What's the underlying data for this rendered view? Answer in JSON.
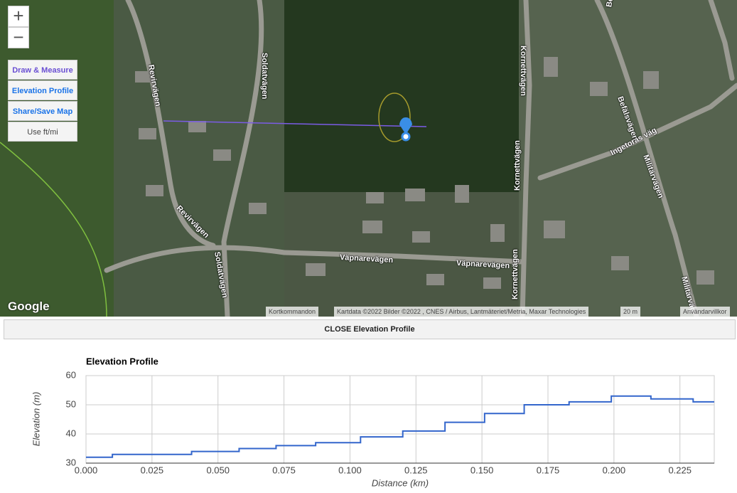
{
  "map": {
    "zoom_in": "+",
    "zoom_out": "−",
    "buttons": [
      "Draw & Measure",
      "Elevation Profile",
      "Share/Save Map",
      "Use ft/mi"
    ],
    "streets": [
      "Revirvägen",
      "Revirvägen",
      "Soldatvägen",
      "Soldatvägen",
      "Kornettvägen",
      "Kornettvägen",
      "Kornettvägen",
      "Befälsvägen",
      "Befälsvägen",
      "Ingetoras väg",
      "Militärvägen",
      "Militärväg",
      "Väpnarevägen",
      "Väpnarevägen"
    ],
    "logo": "Google",
    "attribution": [
      "Kortkommandon",
      "Kartdata ©2022 Bilder ©2022 , CNES / Airbus, Lantmäteriet/Metria, Maxar Technologies",
      "20 m",
      "Användarvillkor"
    ]
  },
  "close_button": "CLOSE Elevation Profile",
  "chart_data": {
    "type": "line",
    "title": "Elevation Profile",
    "x_label": "Distance (km)",
    "y_label": "Elevation (m)",
    "x": [
      0,
      0.01,
      0.01,
      0.04,
      0.04,
      0.058,
      0.058,
      0.072,
      0.072,
      0.087,
      0.087,
      0.104,
      0.104,
      0.12,
      0.12,
      0.136,
      0.136,
      0.151,
      0.151,
      0.166,
      0.166,
      0.183,
      0.183,
      0.199,
      0.199,
      0.214,
      0.214,
      0.23,
      0.23,
      0.238
    ],
    "series": [
      {
        "name": "Elevation",
        "color": "#3366cc",
        "values": [
          32,
          32,
          33,
          33,
          34,
          34,
          35,
          35,
          36,
          36,
          37,
          37,
          39,
          39,
          41,
          41,
          44,
          44,
          47,
          47,
          50,
          50,
          51,
          51,
          53,
          53,
          52,
          52,
          51,
          51
        ]
      }
    ],
    "xlim": [
      0,
      0.238
    ],
    "ylim": [
      30,
      60
    ],
    "xticks": [
      {
        "value": 0,
        "label": "0.000"
      },
      {
        "value": 0.025,
        "label": "0.025"
      },
      {
        "value": 0.05,
        "label": "0.050"
      },
      {
        "value": 0.075,
        "label": "0.075"
      },
      {
        "value": 0.1,
        "label": "0.100"
      },
      {
        "value": 0.125,
        "label": "0.125"
      },
      {
        "value": 0.15,
        "label": "0.150"
      },
      {
        "value": 0.175,
        "label": "0.175"
      },
      {
        "value": 0.2,
        "label": "0.200"
      },
      {
        "value": 0.225,
        "label": "0.225"
      }
    ],
    "yticks": [
      30,
      40,
      50,
      60
    ],
    "grid": true
  }
}
